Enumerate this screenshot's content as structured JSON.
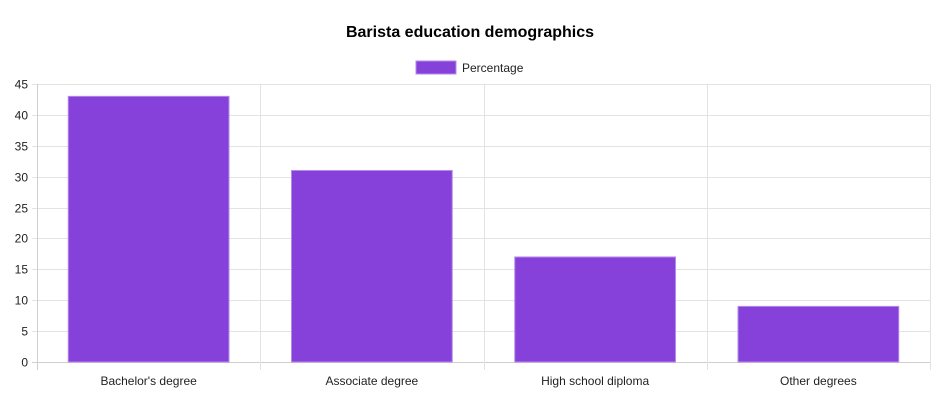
{
  "chart_data": {
    "type": "bar",
    "title": "Barista education demographics",
    "categories": [
      "Bachelor's degree",
      "Associate degree",
      "High school diploma",
      "Other degrees"
    ],
    "series": [
      {
        "name": "Percentage",
        "values": [
          43,
          31,
          17,
          9
        ]
      }
    ],
    "ylim": [
      0,
      45
    ],
    "yticks": [
      0,
      5,
      10,
      15,
      20,
      25,
      30,
      35,
      40,
      45
    ],
    "xlabel": "",
    "ylabel": "",
    "grid": true,
    "legend_position": "top-center",
    "colors": {
      "bar_fill": "#8741db",
      "bar_border": "#b68ae8"
    }
  }
}
